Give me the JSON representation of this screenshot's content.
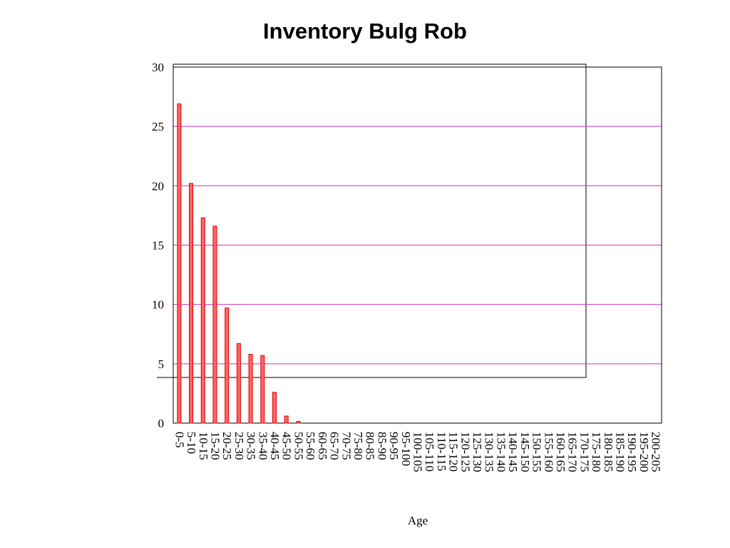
{
  "chart_data": {
    "type": "bar",
    "title": "Inventory Bulg Rob",
    "x_label": "Age",
    "categories": [
      "0-5",
      "5-10",
      "10-15",
      "15-20",
      "20-25",
      "25-30",
      "30-35",
      "35-40",
      "40-45",
      "45-50",
      "50-55",
      "55-60",
      "60-65",
      "65-70",
      "70-75",
      "75-80",
      "80-85",
      "85-90",
      "90-95",
      "95-100",
      "100-105",
      "105-110",
      "110-115",
      "115-120",
      "120-125",
      "125-130",
      "130-135",
      "135-140",
      "140-145",
      "145-150",
      "150-155",
      "155-160",
      "160-165",
      "165-170",
      "170-175",
      "175-180",
      "180-185",
      "185-190",
      "190-195",
      "195-200",
      "200-205"
    ],
    "values": [
      26.9,
      20.2,
      17.3,
      16.6,
      9.7,
      6.7,
      5.8,
      5.7,
      2.6,
      0.6,
      0.15,
      0,
      0,
      0,
      0,
      0,
      0,
      0,
      0,
      0,
      0,
      0,
      0,
      0,
      0,
      0,
      0,
      0,
      0,
      0,
      0,
      0,
      0,
      0,
      0,
      0,
      0,
      0,
      0,
      0,
      0
    ],
    "color": "#ff6666",
    "ylim": [
      0,
      30
    ],
    "yticks": [
      0,
      5,
      10,
      15,
      20,
      25,
      30
    ],
    "grid": true,
    "grid_color": "#cc33cc"
  }
}
